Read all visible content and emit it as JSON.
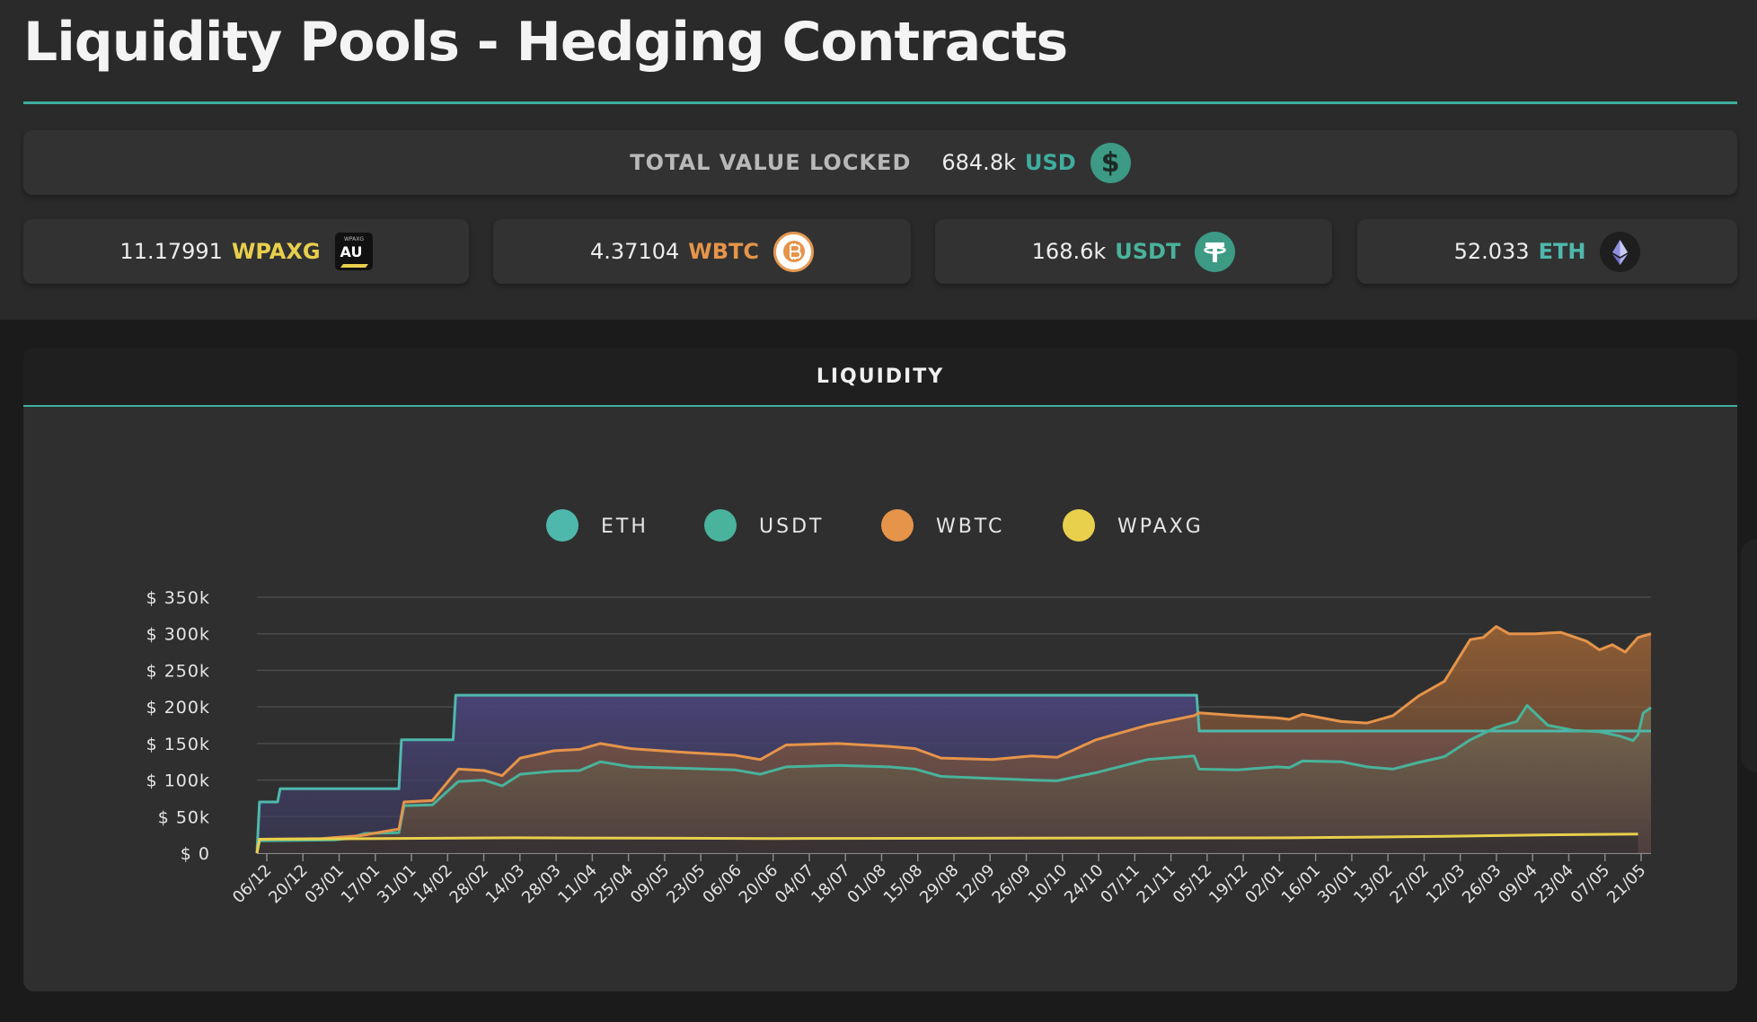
{
  "header": {
    "title": "Liquidity Pools - Hedging Contracts"
  },
  "tvl": {
    "label": "TOTAL VALUE LOCKED",
    "value": "684.8k",
    "unit": "USD",
    "icon": "dollar-coin-icon",
    "unit_color": "#3fae9e"
  },
  "tokens": [
    {
      "value": "11.17991",
      "unit": "WPAXG",
      "color": "#e8cf4c",
      "icon": "wpaxg-au-icon"
    },
    {
      "value": "4.37104",
      "unit": "WBTC",
      "color": "#e5944a",
      "icon": "bitcoin-icon"
    },
    {
      "value": "168.6k",
      "unit": "USDT",
      "color": "#49b39b",
      "icon": "tether-icon"
    },
    {
      "value": "52.033",
      "unit": "ETH",
      "color": "#4fb8ad",
      "icon": "ethereum-icon"
    }
  ],
  "icon_texts": {
    "wpaxg_small": "WPAXG",
    "wpaxg_big": "AU",
    "dollar": "$"
  },
  "chart_data": {
    "type": "area",
    "title": "LIQUIDITY",
    "legend_position": "top-center",
    "grid": true,
    "ylim": [
      0,
      350000
    ],
    "y_ticks": [
      0,
      50000,
      100000,
      150000,
      200000,
      250000,
      300000,
      350000
    ],
    "y_tick_labels": [
      "$ 0",
      "$ 50k",
      "$ 100k",
      "$ 150k",
      "$ 200k",
      "$ 250k",
      "$ 300k",
      "$ 350k"
    ],
    "x_tick_labels": [
      "06/12",
      "20/12",
      "03/01",
      "17/01",
      "31/01",
      "14/02",
      "28/02",
      "14/03",
      "28/03",
      "11/04",
      "25/04",
      "09/05",
      "23/05",
      "06/06",
      "20/06",
      "04/07",
      "18/07",
      "01/08",
      "15/08",
      "29/08",
      "12/09",
      "26/09",
      "10/10",
      "24/10",
      "07/11",
      "21/11",
      "05/12",
      "19/12",
      "02/01",
      "16/01",
      "30/01",
      "13/02",
      "27/02",
      "12/03",
      "26/03",
      "09/04",
      "23/04",
      "07/05",
      "21/05"
    ],
    "x_range": [
      0,
      540
    ],
    "series": [
      {
        "name": "ETH",
        "color": "#4fb8ad",
        "points": [
          [
            0,
            0
          ],
          [
            1,
            70000
          ],
          [
            8,
            70000
          ],
          [
            9,
            88000
          ],
          [
            55,
            88000
          ],
          [
            56,
            155000
          ],
          [
            76,
            155000
          ],
          [
            77,
            216000
          ],
          [
            364,
            216000
          ],
          [
            365,
            167000
          ],
          [
            540,
            167000
          ]
        ]
      },
      {
        "name": "USDT",
        "color": "#49b39b",
        "points": [
          [
            0,
            0
          ],
          [
            1,
            17000
          ],
          [
            30,
            18000
          ],
          [
            35,
            20000
          ],
          [
            42,
            27000
          ],
          [
            55,
            28000
          ],
          [
            57,
            65000
          ],
          [
            68,
            66000
          ],
          [
            78,
            98000
          ],
          [
            88,
            100000
          ],
          [
            95,
            92000
          ],
          [
            102,
            108000
          ],
          [
            115,
            112000
          ],
          [
            125,
            113000
          ],
          [
            133,
            125000
          ],
          [
            145,
            118000
          ],
          [
            165,
            116000
          ],
          [
            185,
            114000
          ],
          [
            195,
            108000
          ],
          [
            205,
            118000
          ],
          [
            225,
            120000
          ],
          [
            245,
            118000
          ],
          [
            255,
            115000
          ],
          [
            265,
            105000
          ],
          [
            285,
            102000
          ],
          [
            300,
            100000
          ],
          [
            310,
            99000
          ],
          [
            325,
            110000
          ],
          [
            345,
            128000
          ],
          [
            363,
            133000
          ],
          [
            365,
            115000
          ],
          [
            380,
            114000
          ],
          [
            395,
            118000
          ],
          [
            400,
            117000
          ],
          [
            405,
            126000
          ],
          [
            420,
            125000
          ],
          [
            430,
            118000
          ],
          [
            440,
            115000
          ],
          [
            450,
            124000
          ],
          [
            460,
            132000
          ],
          [
            470,
            155000
          ],
          [
            480,
            172000
          ],
          [
            488,
            180000
          ],
          [
            492,
            202000
          ],
          [
            500,
            175000
          ],
          [
            510,
            168000
          ],
          [
            520,
            166000
          ],
          [
            528,
            160000
          ],
          [
            533,
            154000
          ],
          [
            535,
            162000
          ],
          [
            537,
            192000
          ],
          [
            540,
            199000
          ]
        ]
      },
      {
        "name": "WBTC",
        "color": "#e5944a",
        "points": [
          [
            0,
            0
          ],
          [
            1,
            19000
          ],
          [
            25,
            20000
          ],
          [
            40,
            24000
          ],
          [
            55,
            33000
          ],
          [
            57,
            70000
          ],
          [
            68,
            72000
          ],
          [
            78,
            115000
          ],
          [
            88,
            113000
          ],
          [
            95,
            106000
          ],
          [
            102,
            130000
          ],
          [
            115,
            140000
          ],
          [
            125,
            142000
          ],
          [
            133,
            150000
          ],
          [
            145,
            143000
          ],
          [
            165,
            138000
          ],
          [
            185,
            134000
          ],
          [
            195,
            128000
          ],
          [
            205,
            148000
          ],
          [
            225,
            150000
          ],
          [
            245,
            146000
          ],
          [
            255,
            143000
          ],
          [
            265,
            130000
          ],
          [
            285,
            128000
          ],
          [
            300,
            133000
          ],
          [
            310,
            131000
          ],
          [
            325,
            155000
          ],
          [
            345,
            175000
          ],
          [
            363,
            188000
          ],
          [
            365,
            192000
          ],
          [
            380,
            188000
          ],
          [
            395,
            185000
          ],
          [
            400,
            183000
          ],
          [
            405,
            190000
          ],
          [
            420,
            180000
          ],
          [
            430,
            178000
          ],
          [
            440,
            188000
          ],
          [
            450,
            215000
          ],
          [
            460,
            235000
          ],
          [
            470,
            292000
          ],
          [
            475,
            295000
          ],
          [
            480,
            310000
          ],
          [
            485,
            300000
          ],
          [
            495,
            300000
          ],
          [
            505,
            302000
          ],
          [
            515,
            290000
          ],
          [
            520,
            278000
          ],
          [
            525,
            285000
          ],
          [
            530,
            275000
          ],
          [
            535,
            295000
          ],
          [
            540,
            300000
          ]
        ]
      },
      {
        "name": "WPAXG",
        "color": "#e8cf4c",
        "points": [
          [
            0,
            0
          ],
          [
            1,
            19000
          ],
          [
            100,
            21000
          ],
          [
            200,
            20000
          ],
          [
            300,
            20500
          ],
          [
            400,
            21000
          ],
          [
            460,
            23000
          ],
          [
            500,
            25000
          ],
          [
            535,
            26000
          ]
        ]
      }
    ]
  }
}
